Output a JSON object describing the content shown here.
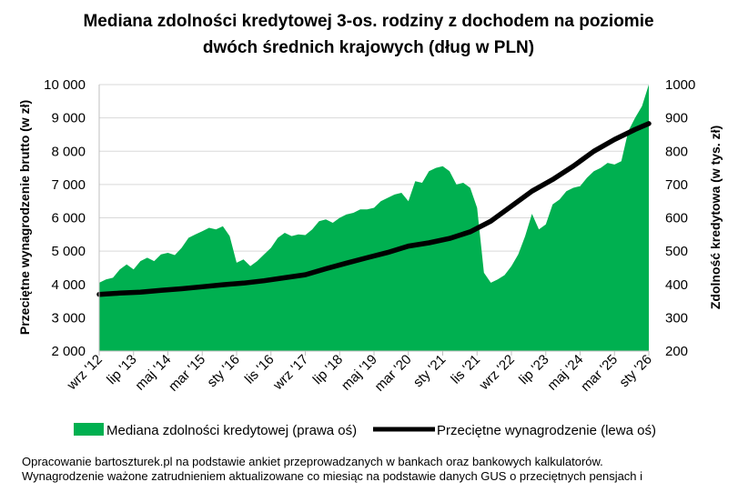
{
  "chart_data": {
    "type": "area+line",
    "title_line1": "Mediana zdolności kredytowej 3-os. rodziny z dochodem na poziomie",
    "title_line2": "dwóch średnich krajowych (dług w PLN)",
    "ylabel_left": "Przeciętne wynagrodzenie brutto (w zł)",
    "ylabel_right": "Zdolność kredytowa (w tys. zł)",
    "ylim_left": [
      2000,
      10000
    ],
    "ylim_right": [
      200,
      1000
    ],
    "yticks_left": [
      "2 000",
      "3 000",
      "4 000",
      "5 000",
      "6 000",
      "7 000",
      "8 000",
      "9 000",
      "10 000"
    ],
    "yticks_right": [
      "200",
      "300",
      "400",
      "500",
      "600",
      "700",
      "800",
      "900",
      "1000"
    ],
    "x_start": "2012-09",
    "x_end": "2026-01",
    "x_tick_labels": [
      {
        "label": "wrz '12",
        "date": "2012-09"
      },
      {
        "label": "lip '13",
        "date": "2013-07"
      },
      {
        "label": "maj '14",
        "date": "2014-05"
      },
      {
        "label": "mar '15",
        "date": "2015-03"
      },
      {
        "label": "sty '16",
        "date": "2016-01"
      },
      {
        "label": "lis '16",
        "date": "2016-11"
      },
      {
        "label": "wrz '17",
        "date": "2017-09"
      },
      {
        "label": "lip '18",
        "date": "2018-07"
      },
      {
        "label": "maj '19",
        "date": "2019-05"
      },
      {
        "label": "mar '20",
        "date": "2020-03"
      },
      {
        "label": "sty '21",
        "date": "2021-01"
      },
      {
        "label": "lis '21",
        "date": "2021-11"
      },
      {
        "label": "wrz '22",
        "date": "2022-09"
      },
      {
        "label": "lip '23",
        "date": "2023-07"
      },
      {
        "label": "maj '24",
        "date": "2024-05"
      },
      {
        "label": "mar '25",
        "date": "2025-03"
      },
      {
        "label": "sty '26",
        "date": "2026-01"
      }
    ],
    "series": [
      {
        "name": "Mediana zdolności kredytowej (prawa oś)",
        "kind": "area",
        "axis": "right",
        "color": "#00b050",
        "points": [
          [
            "2012-09",
            405
          ],
          [
            "2012-11",
            415
          ],
          [
            "2013-01",
            420
          ],
          [
            "2013-03",
            445
          ],
          [
            "2013-05",
            460
          ],
          [
            "2013-07",
            445
          ],
          [
            "2013-09",
            470
          ],
          [
            "2013-11",
            480
          ],
          [
            "2014-01",
            470
          ],
          [
            "2014-03",
            490
          ],
          [
            "2014-05",
            495
          ],
          [
            "2014-07",
            488
          ],
          [
            "2014-09",
            510
          ],
          [
            "2014-11",
            540
          ],
          [
            "2015-01",
            550
          ],
          [
            "2015-03",
            560
          ],
          [
            "2015-05",
            570
          ],
          [
            "2015-07",
            565
          ],
          [
            "2015-09",
            575
          ],
          [
            "2015-11",
            545
          ],
          [
            "2016-01",
            465
          ],
          [
            "2016-03",
            475
          ],
          [
            "2016-05",
            455
          ],
          [
            "2016-07",
            470
          ],
          [
            "2016-09",
            490
          ],
          [
            "2016-11",
            510
          ],
          [
            "2017-01",
            540
          ],
          [
            "2017-03",
            555
          ],
          [
            "2017-05",
            545
          ],
          [
            "2017-07",
            550
          ],
          [
            "2017-09",
            548
          ],
          [
            "2017-11",
            565
          ],
          [
            "2018-01",
            590
          ],
          [
            "2018-03",
            595
          ],
          [
            "2018-05",
            585
          ],
          [
            "2018-07",
            600
          ],
          [
            "2018-09",
            610
          ],
          [
            "2018-11",
            615
          ],
          [
            "2019-01",
            625
          ],
          [
            "2019-03",
            625
          ],
          [
            "2019-05",
            630
          ],
          [
            "2019-07",
            650
          ],
          [
            "2019-09",
            660
          ],
          [
            "2019-11",
            670
          ],
          [
            "2020-01",
            675
          ],
          [
            "2020-03",
            650
          ],
          [
            "2020-05",
            710
          ],
          [
            "2020-07",
            705
          ],
          [
            "2020-09",
            740
          ],
          [
            "2020-11",
            750
          ],
          [
            "2021-01",
            755
          ],
          [
            "2021-03",
            740
          ],
          [
            "2021-05",
            700
          ],
          [
            "2021-07",
            705
          ],
          [
            "2021-09",
            690
          ],
          [
            "2021-11",
            630
          ],
          [
            "2022-01",
            435
          ],
          [
            "2022-03",
            405
          ],
          [
            "2022-05",
            415
          ],
          [
            "2022-07",
            428
          ],
          [
            "2022-09",
            455
          ],
          [
            "2022-11",
            490
          ],
          [
            "2023-01",
            545
          ],
          [
            "2023-03",
            612
          ],
          [
            "2023-05",
            565
          ],
          [
            "2023-07",
            580
          ],
          [
            "2023-09",
            640
          ],
          [
            "2023-11",
            655
          ],
          [
            "2024-01",
            680
          ],
          [
            "2024-03",
            690
          ],
          [
            "2024-05",
            695
          ],
          [
            "2024-07",
            720
          ],
          [
            "2024-09",
            740
          ],
          [
            "2024-11",
            750
          ],
          [
            "2025-01",
            765
          ],
          [
            "2025-03",
            760
          ],
          [
            "2025-05",
            770
          ],
          [
            "2025-07",
            860
          ],
          [
            "2025-09",
            900
          ],
          [
            "2025-11",
            935
          ],
          [
            "2026-01",
            1000
          ]
        ]
      },
      {
        "name": "Przeciętne wynagrodzenie (lewa oś)",
        "kind": "line",
        "axis": "left",
        "color": "#000000",
        "points": [
          [
            "2012-09",
            3700
          ],
          [
            "2013-03",
            3740
          ],
          [
            "2013-09",
            3770
          ],
          [
            "2014-03",
            3820
          ],
          [
            "2014-09",
            3870
          ],
          [
            "2015-03",
            3930
          ],
          [
            "2015-09",
            3990
          ],
          [
            "2016-03",
            4040
          ],
          [
            "2016-09",
            4110
          ],
          [
            "2017-03",
            4200
          ],
          [
            "2017-09",
            4290
          ],
          [
            "2018-03",
            4470
          ],
          [
            "2018-09",
            4640
          ],
          [
            "2019-03",
            4800
          ],
          [
            "2019-09",
            4960
          ],
          [
            "2020-03",
            5150
          ],
          [
            "2020-09",
            5250
          ],
          [
            "2021-03",
            5380
          ],
          [
            "2021-09",
            5580
          ],
          [
            "2022-03",
            5900
          ],
          [
            "2022-09",
            6350
          ],
          [
            "2023-03",
            6800
          ],
          [
            "2023-09",
            7150
          ],
          [
            "2024-03",
            7550
          ],
          [
            "2024-09",
            8000
          ],
          [
            "2025-03",
            8350
          ],
          [
            "2025-09",
            8650
          ],
          [
            "2026-01",
            8830
          ]
        ]
      }
    ],
    "grid": true,
    "legend_position": "bottom"
  },
  "legend": {
    "area_label": "Mediana zdolności kredytowej (prawa oś)",
    "line_label": "Przeciętne wynagrodzenie (lewa oś)"
  },
  "footnote": {
    "line1": "Opracowanie bartoszturek.pl na podstawie ankiet przeprowadzanych w bankach oraz bankowych kalkulatorów.",
    "line2": "Wynagrodzenie ważone zatrudnieniem aktualizowane co miesiąc na podstawie danych GUS o przeciętnych pensjach i"
  }
}
